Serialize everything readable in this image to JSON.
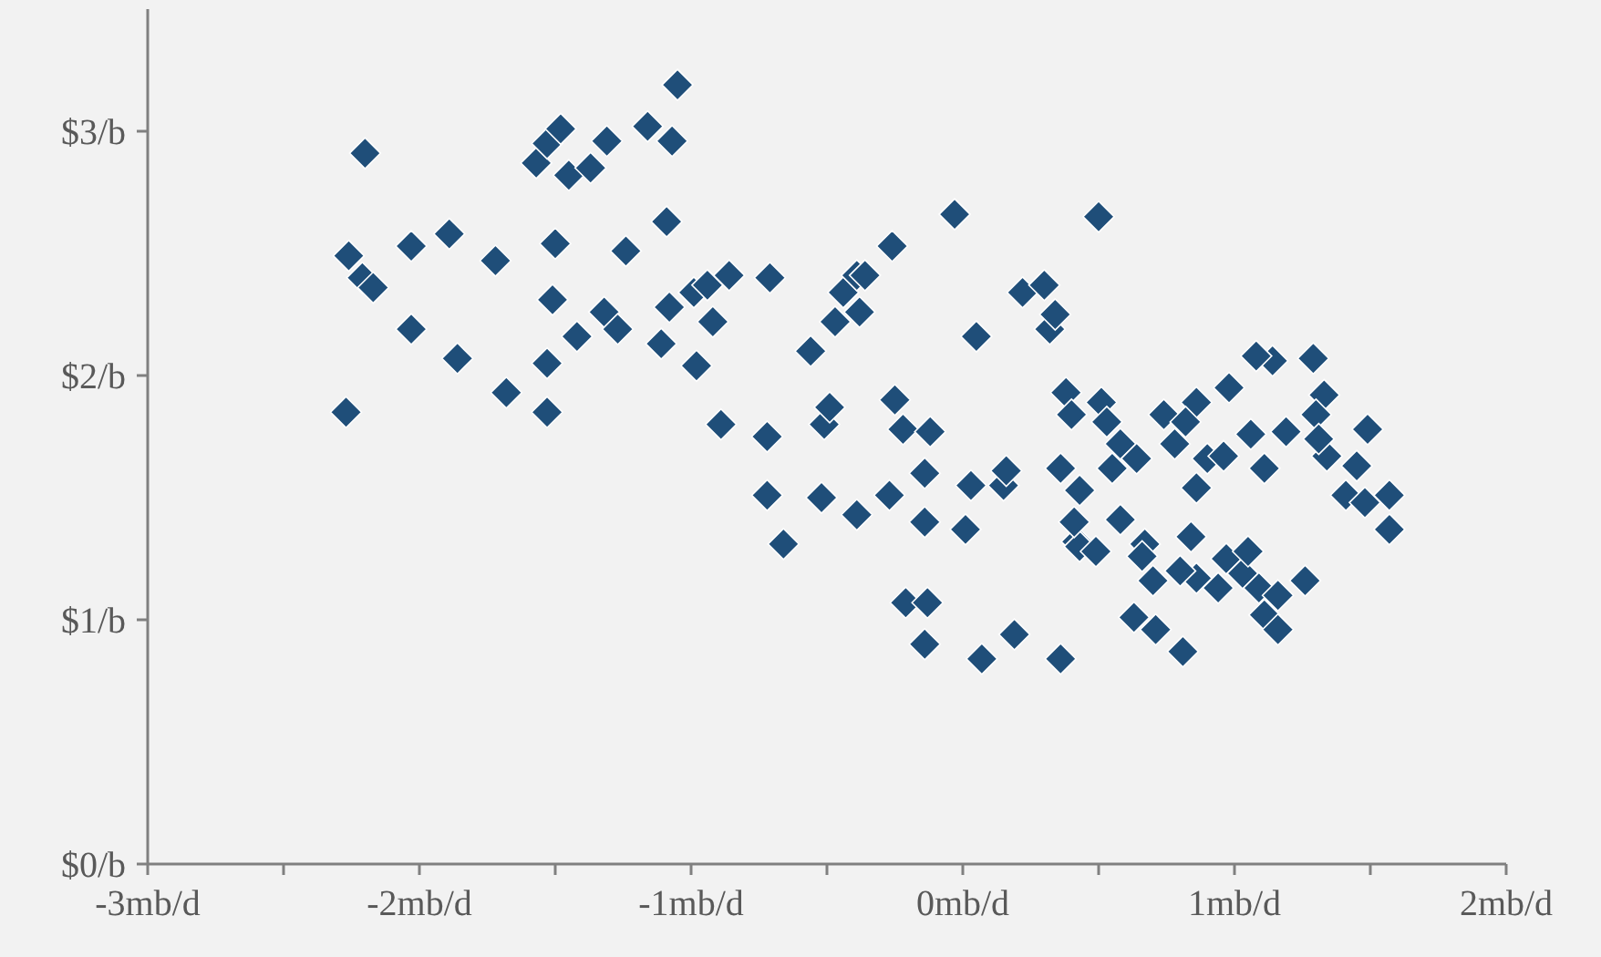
{
  "chart_data": {
    "type": "scatter",
    "marker": "diamond",
    "grid": false,
    "xlim": [
      -3,
      2
    ],
    "ylim": [
      0,
      3.5
    ],
    "xticks": [
      {
        "value": -3,
        "label": "-3mb/d"
      },
      {
        "value": -2.5,
        "label": null
      },
      {
        "value": -2,
        "label": "-2mb/d"
      },
      {
        "value": -1.5,
        "label": null
      },
      {
        "value": -1,
        "label": "-1mb/d"
      },
      {
        "value": -0.5,
        "label": null
      },
      {
        "value": 0,
        "label": "0mb/d"
      },
      {
        "value": 0.5,
        "label": null
      },
      {
        "value": 1,
        "label": "1mb/d"
      },
      {
        "value": 1.5,
        "label": null
      },
      {
        "value": 2,
        "label": "2mb/d"
      }
    ],
    "yticks": [
      {
        "value": 0,
        "label": "$0/b"
      },
      {
        "value": 1,
        "label": "$1/b"
      },
      {
        "value": 2,
        "label": "$2/b"
      },
      {
        "value": 3,
        "label": "$3/b"
      }
    ],
    "series": [
      {
        "color": "#1f4e79",
        "x": [
          -2.27,
          -2.2,
          -2.26,
          -2.21,
          -2.17,
          -2.03,
          -2.03,
          -1.89,
          -1.86,
          -1.72,
          -1.68,
          -1.53,
          -1.53,
          -1.51,
          -1.5,
          -1.57,
          -1.53,
          -1.48,
          -1.45,
          -1.42,
          -1.37,
          -1.31,
          -1.32,
          -1.27,
          -1.24,
          -1.16,
          -1.09,
          -1.11,
          -1.07,
          -1.05,
          -1.08,
          -0.99,
          -0.98,
          -0.94,
          -0.89,
          -0.86,
          -0.92,
          -0.71,
          -0.72,
          -0.72,
          -0.66,
          -0.56,
          -0.52,
          -0.51,
          -0.49,
          -0.47,
          -0.44,
          -0.39,
          -0.39,
          -0.38,
          -0.36,
          -0.27,
          -0.26,
          -0.25,
          -0.22,
          -0.21,
          -0.14,
          -0.14,
          -0.14,
          -0.12,
          -0.13,
          -0.03,
          0.01,
          0.03,
          0.05,
          0.07,
          0.15,
          0.16,
          0.19,
          0.22,
          0.3,
          0.32,
          0.34,
          0.36,
          0.38,
          0.4,
          0.42,
          0.43,
          0.36,
          0.43,
          0.5,
          0.51,
          0.53,
          0.55,
          0.58,
          0.64,
          0.41,
          0.49,
          0.58,
          0.67,
          0.7,
          0.66,
          0.63,
          0.71,
          0.81,
          0.74,
          0.86,
          0.82,
          0.78,
          0.9,
          0.96,
          0.86,
          0.98,
          1.06,
          1.11,
          1.19,
          1.14,
          1.08,
          1.29,
          1.33,
          1.3,
          1.34,
          1.31,
          1.45,
          1.49,
          1.41,
          1.48,
          1.57,
          1.57,
          0.84,
          0.97,
          1.03,
          1.05,
          0.86,
          0.8,
          0.94,
          1.09,
          1.16,
          1.26,
          1.11,
          1.16
        ],
        "values": [
          1.85,
          2.91,
          2.49,
          2.4,
          2.36,
          2.53,
          2.19,
          2.58,
          2.07,
          2.47,
          1.93,
          1.85,
          2.05,
          2.31,
          2.54,
          2.87,
          2.95,
          3.01,
          2.82,
          2.16,
          2.85,
          2.96,
          2.26,
          2.19,
          2.51,
          3.02,
          2.63,
          2.13,
          2.96,
          3.19,
          2.28,
          2.34,
          2.04,
          2.37,
          1.8,
          2.41,
          2.22,
          2.4,
          1.75,
          1.51,
          1.31,
          2.1,
          1.5,
          1.8,
          1.87,
          2.22,
          2.34,
          2.41,
          1.43,
          2.26,
          2.41,
          1.51,
          2.53,
          1.9,
          1.78,
          1.07,
          0.9,
          1.4,
          1.6,
          1.77,
          1.07,
          2.66,
          1.37,
          1.55,
          2.16,
          0.84,
          1.55,
          1.61,
          0.94,
          2.34,
          2.37,
          2.19,
          2.25,
          0.84,
          1.93,
          1.84,
          1.32,
          1.53,
          1.62,
          1.3,
          2.65,
          1.89,
          1.81,
          1.62,
          1.72,
          1.66,
          1.4,
          1.28,
          1.41,
          1.31,
          1.16,
          1.26,
          1.01,
          0.96,
          0.87,
          1.84,
          1.89,
          1.81,
          1.72,
          1.66,
          1.67,
          1.54,
          1.95,
          1.76,
          1.62,
          1.77,
          2.06,
          2.08,
          2.07,
          1.92,
          1.84,
          1.67,
          1.74,
          1.63,
          1.78,
          1.51,
          1.48,
          1.51,
          1.37,
          1.34,
          1.25,
          1.19,
          1.28,
          1.17,
          1.2,
          1.13,
          1.13,
          1.1,
          1.16,
          1.02,
          0.96
        ]
      }
    ]
  }
}
